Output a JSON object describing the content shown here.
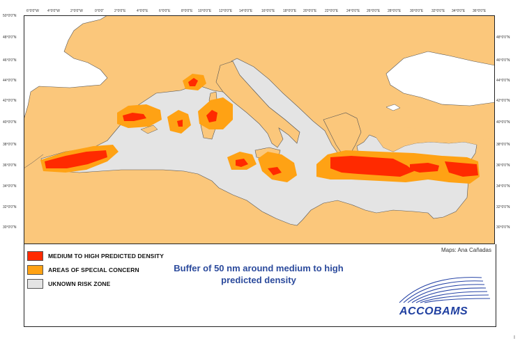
{
  "map": {
    "lon_labels": [
      "6°0'0\"W",
      "4°0'0\"W",
      "2°0'0\"W",
      "0°0'0\"",
      "2°0'0\"E",
      "4°0'0\"E",
      "6°0'0\"E",
      "8°0'0\"E",
      "10°0'0\"E",
      "12°0'0\"E",
      "14°0'0\"E",
      "16°0'0\"E",
      "18°0'0\"E",
      "20°0'0\"E",
      "22°0'0\"E",
      "24°0'0\"E",
      "26°0'0\"E",
      "28°0'0\"E",
      "30°0'0\"E",
      "32°0'0\"E",
      "34°0'0\"E",
      "36°0'0\"E"
    ],
    "lat_labels": [
      "50°0'0\"N",
      "48°0'0\"N",
      "46°0'0\"N",
      "44°0'0\"N",
      "42°0'0\"N",
      "40°0'0\"N",
      "38°0'0\"N",
      "36°0'0\"N",
      "34°0'0\"N",
      "32°0'0\"N",
      "30°0'0\"N"
    ],
    "colors": {
      "land": "#fbc77b",
      "sea": "#e4e4e4",
      "outer_water": "#ffffff",
      "special_concern": "#ffa214",
      "high_density": "#ff2a00"
    }
  },
  "legend": {
    "items": [
      {
        "label": "MEDIUM TO HIGH PREDICTED DENSITY",
        "color": "#ff2a00"
      },
      {
        "label": "AREAS OF SPECIAL CONCERN",
        "color": "#ffa214"
      },
      {
        "label": "UKNOWN RISK ZONE",
        "color": "#e4e4e4"
      }
    ]
  },
  "caption": {
    "line1": "Buffer of 50 nm around medium to high",
    "line2": "predicted density"
  },
  "credit": "Maps: Ana Cañadas",
  "logo": {
    "text": "ACCOBAMS"
  },
  "page_mark": "I"
}
